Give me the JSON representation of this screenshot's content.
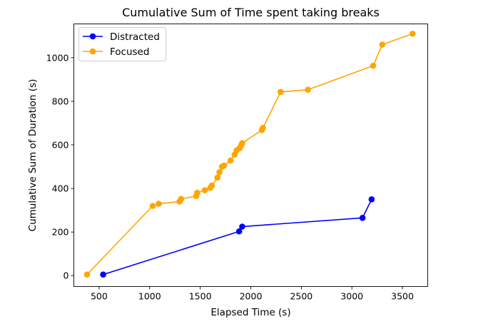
{
  "chart_data": {
    "type": "line",
    "title": "Cumulative Sum of Time spent taking breaks",
    "xlabel": "Elapsed Time (s)",
    "ylabel": "Cumulative Sum of Duration (s)",
    "xlim": [
      250,
      3750
    ],
    "ylim": [
      -50,
      1155
    ],
    "xticks": [
      500,
      1000,
      1500,
      2000,
      2500,
      3000,
      3500
    ],
    "yticks": [
      0,
      200,
      400,
      600,
      800,
      1000
    ],
    "grid": false,
    "legend_position": "top-left",
    "series": [
      {
        "name": "Distracted",
        "color": "#0000ff",
        "x": [
          540,
          1885,
          1915,
          3105,
          3195
        ],
        "y": [
          5,
          203,
          225,
          265,
          350
        ]
      },
      {
        "name": "Focused",
        "color": "#ffa500",
        "x": [
          380,
          1030,
          1090,
          1295,
          1310,
          1460,
          1470,
          1545,
          1600,
          1615,
          1670,
          1690,
          1715,
          1735,
          1800,
          1840,
          1860,
          1890,
          1905,
          1915,
          2110,
          2120,
          2295,
          2565,
          3210,
          3300,
          3600
        ],
        "y": [
          5,
          320,
          330,
          340,
          352,
          365,
          380,
          392,
          403,
          413,
          450,
          475,
          500,
          505,
          528,
          555,
          575,
          585,
          597,
          608,
          668,
          678,
          843,
          853,
          963,
          1060,
          1110
        ]
      }
    ]
  }
}
